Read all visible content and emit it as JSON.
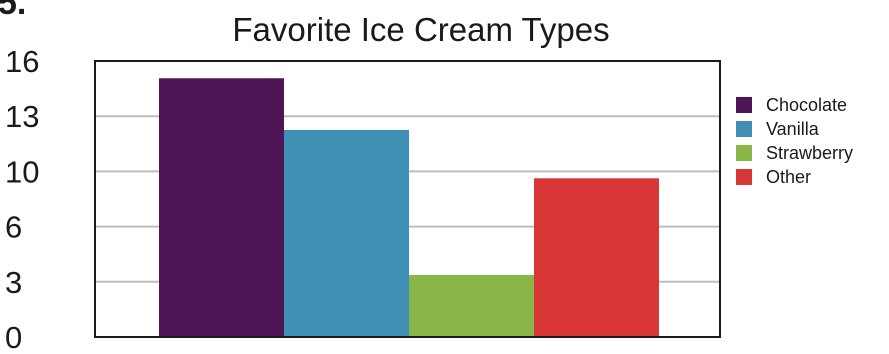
{
  "chart_data": {
    "type": "bar",
    "title": "Favorite Ice Cream Types",
    "xlabel": "",
    "ylabel": "",
    "yticks": [
      "0",
      "3",
      "6",
      "10",
      "13",
      "16"
    ],
    "ylim": [
      0,
      16
    ],
    "grid": true,
    "legend_position": "right",
    "series": [
      {
        "name": "Chocolate",
        "value": 15,
        "color": "#4f1655"
      },
      {
        "name": "Vanilla",
        "value": 12,
        "color": "#408fb4"
      },
      {
        "name": "Strawberry",
        "value": 3.6,
        "color": "#8ab548"
      },
      {
        "name": "Other",
        "value": 9.2,
        "color": "#d93736"
      }
    ]
  }
}
